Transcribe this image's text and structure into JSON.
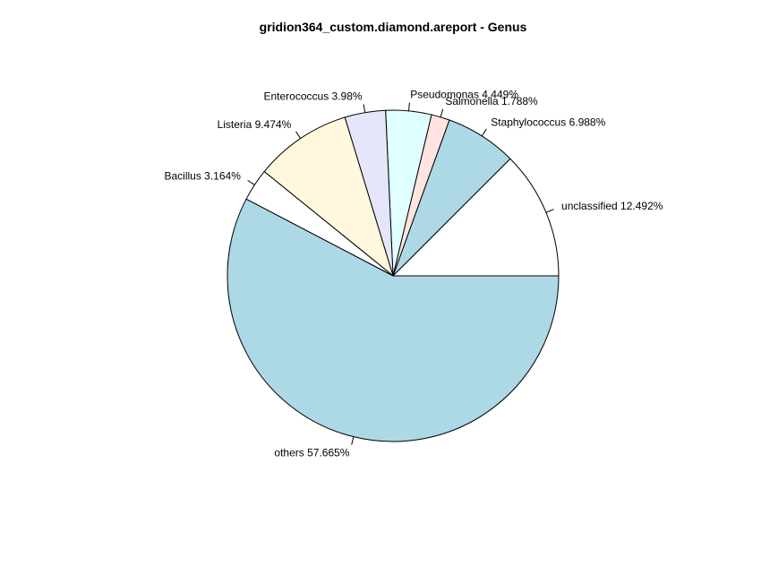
{
  "chart_data": {
    "type": "pie",
    "title": "gridion364_custom.diamond.areport - Genus",
    "unit": "%",
    "start_angle_deg": 0,
    "direction": "counterclockwise",
    "slices": [
      {
        "label": "unclassified 12.492%",
        "value": 12.492,
        "color": "#ffffff"
      },
      {
        "label": "Staphylococcus 6.988%",
        "value": 6.988,
        "color": "#add8e6"
      },
      {
        "label": "Salmonella 1.788%",
        "value": 1.788,
        "color": "#ffe4e1"
      },
      {
        "label": "Pseudomonas 4.449%",
        "value": 4.449,
        "color": "#e0ffff"
      },
      {
        "label": "Enterococcus 3.98%",
        "value": 3.98,
        "color": "#e6e6fa"
      },
      {
        "label": "Listeria 9.474%",
        "value": 9.474,
        "color": "#fff8dc"
      },
      {
        "label": "Bacillus 3.164%",
        "value": 3.164,
        "color": "#ffffff"
      },
      {
        "label": "others 57.665%",
        "value": 57.665,
        "color": "#add8e6"
      }
    ]
  }
}
